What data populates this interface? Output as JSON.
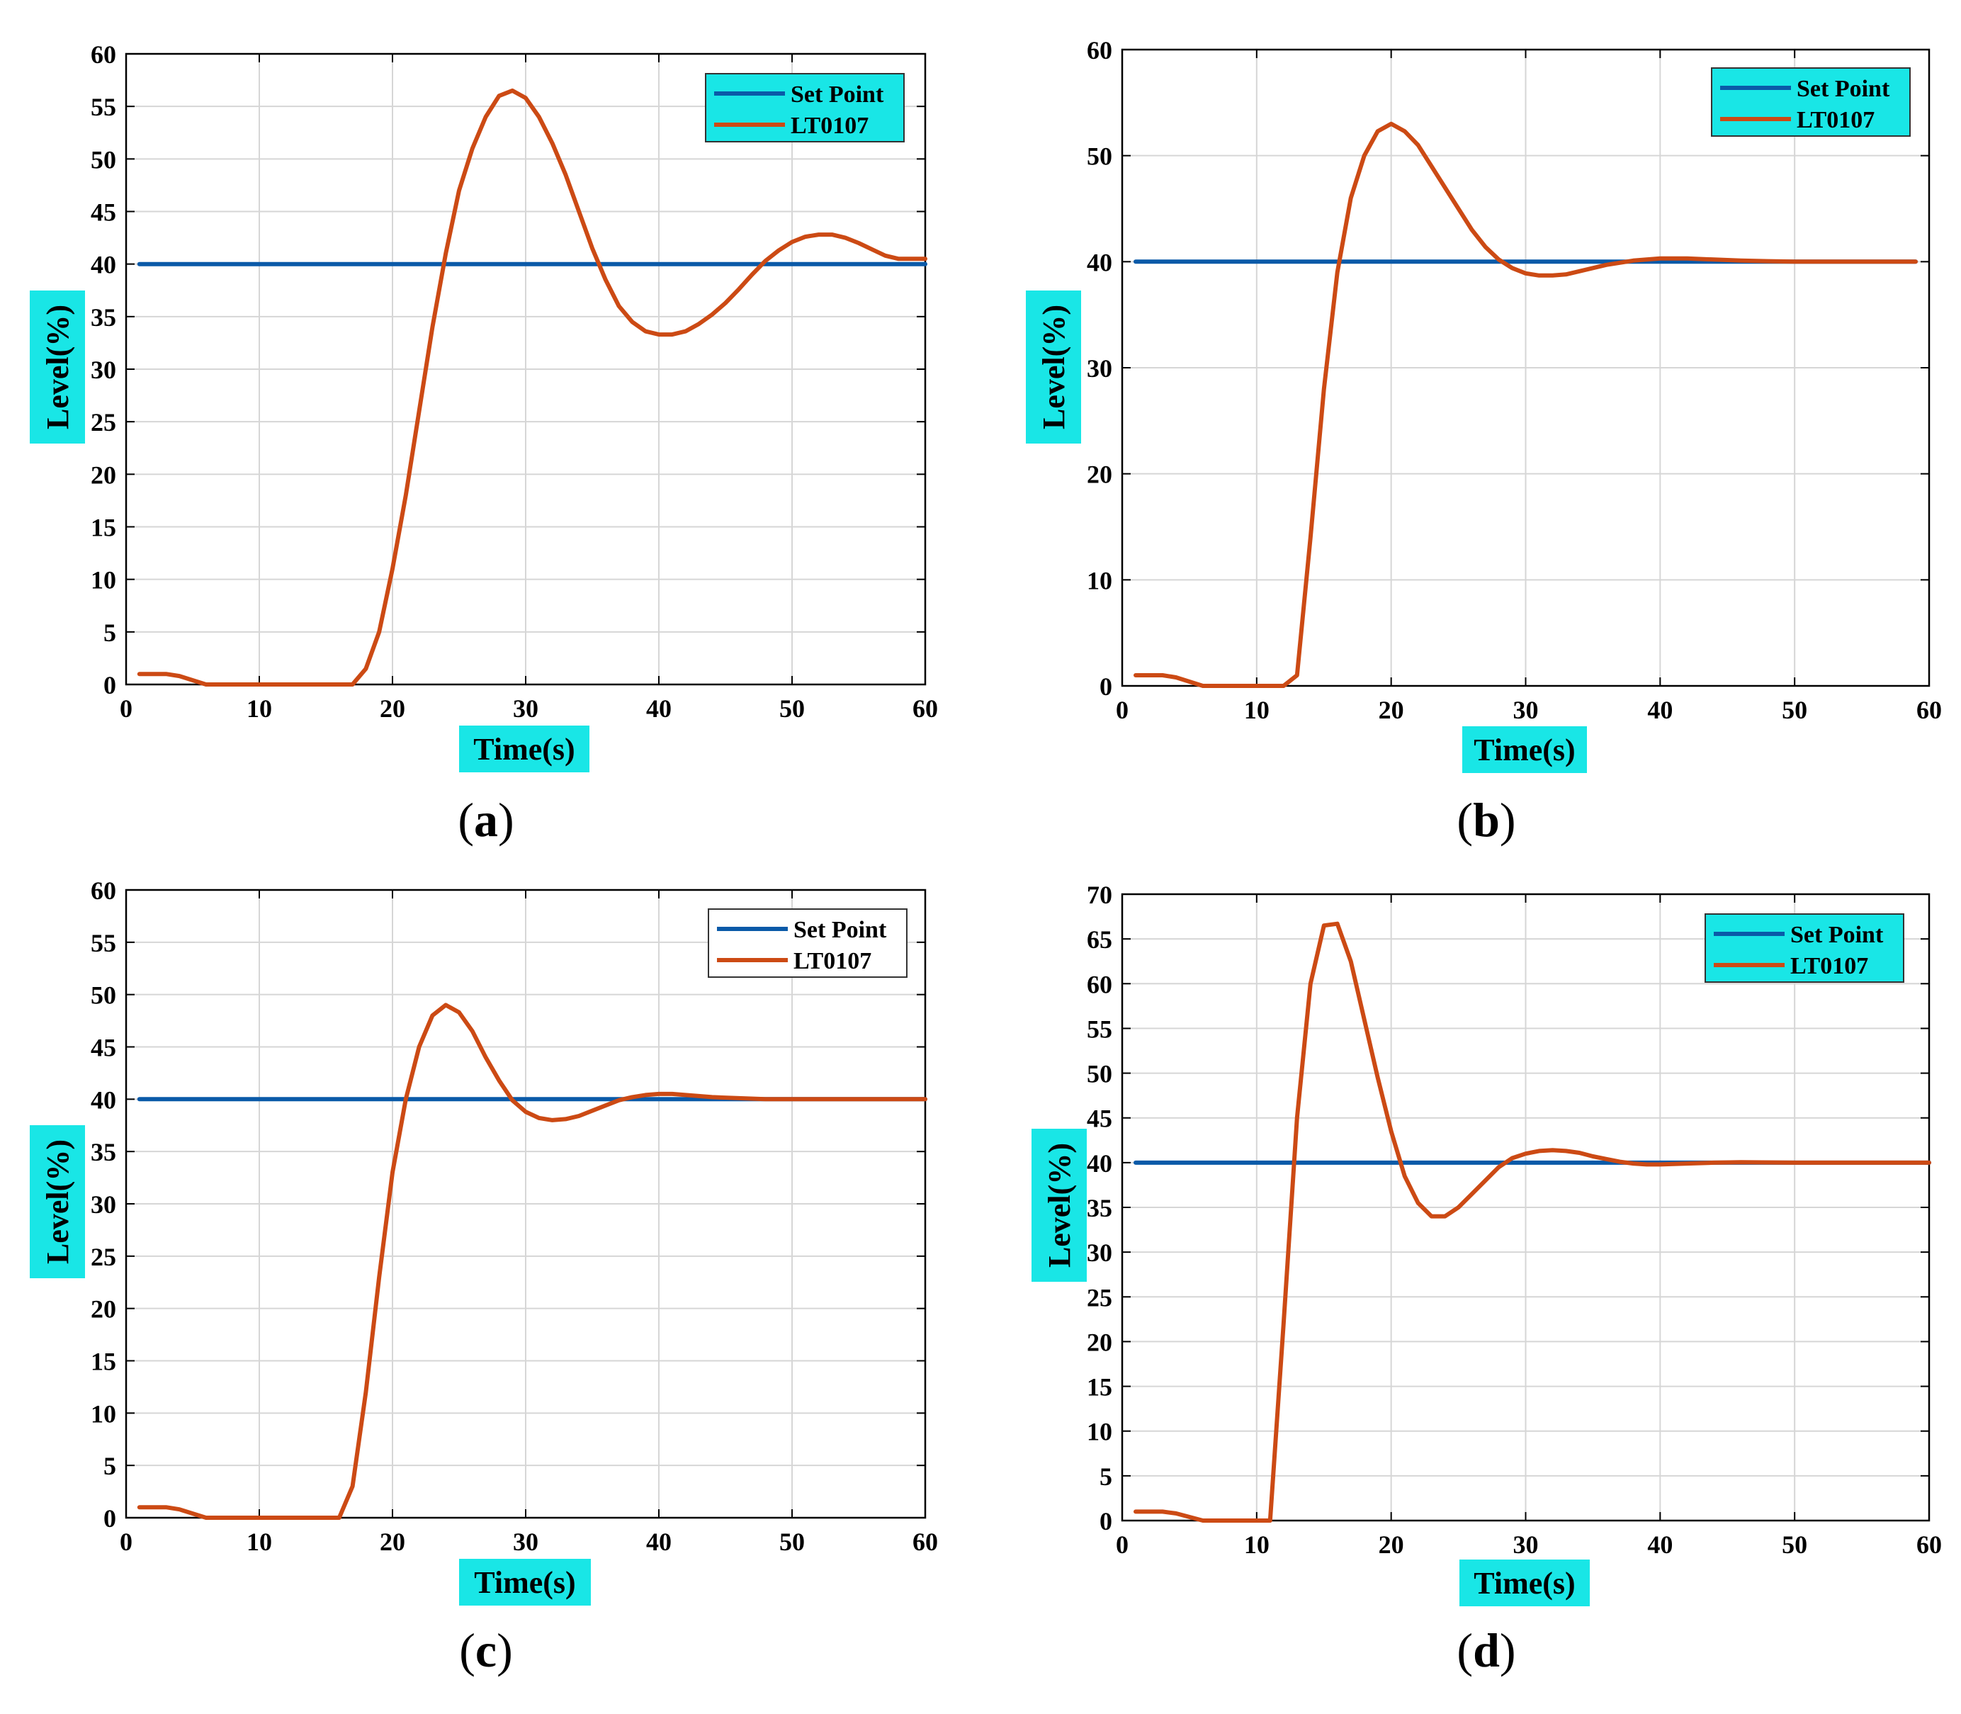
{
  "colors": {
    "setpoint": "#0a5aa8",
    "response": "#cc4a14",
    "label_highlight": "#19e6e6",
    "grid": "#d6d6d6",
    "axis": "#000000"
  },
  "chart_data": [
    {
      "panel": "a",
      "type": "line",
      "caption_letter": "a",
      "xlabel": "Time(s)",
      "ylabel": "Level(%)",
      "xlim": [
        0,
        60
      ],
      "ylim": [
        0,
        60
      ],
      "xticks": [
        0,
        10,
        20,
        30,
        40,
        50,
        60
      ],
      "yticks": [
        0,
        5,
        10,
        15,
        20,
        25,
        30,
        35,
        40,
        45,
        50,
        55,
        60
      ],
      "grid": true,
      "legend_position": "top-right",
      "legend_style": "filled",
      "series": [
        {
          "name": "Set Point",
          "x": [
            1,
            60
          ],
          "y": [
            40,
            40
          ]
        },
        {
          "name": "LT0107",
          "x": [
            1,
            3,
            4,
            6,
            10,
            15,
            17,
            18,
            19,
            20,
            21,
            22,
            23,
            24,
            25,
            26,
            27,
            28,
            29,
            30,
            31,
            32,
            33,
            34,
            35,
            36,
            37,
            38,
            39,
            40,
            41,
            42,
            43,
            44,
            45,
            46,
            47,
            48,
            49,
            50,
            51,
            52,
            53,
            54,
            55,
            56,
            57,
            58,
            59,
            60
          ],
          "y": [
            1,
            1,
            0.8,
            0,
            0,
            0,
            0,
            1.5,
            5,
            11,
            18,
            26,
            34,
            41,
            47,
            51,
            54,
            56,
            56.5,
            55.8,
            54,
            51.5,
            48.5,
            45,
            41.5,
            38.5,
            36,
            34.5,
            33.6,
            33.3,
            33.3,
            33.6,
            34.3,
            35.2,
            36.3,
            37.6,
            39,
            40.3,
            41.3,
            42.1,
            42.6,
            42.8,
            42.8,
            42.5,
            42,
            41.4,
            40.8,
            40.5,
            40.5,
            40.5
          ]
        }
      ]
    },
    {
      "panel": "b",
      "type": "line",
      "caption_letter": "b",
      "xlabel": "Time(s)",
      "ylabel": "Level(%)",
      "xlim": [
        0,
        60
      ],
      "ylim": [
        0,
        60
      ],
      "xticks": [
        0,
        10,
        20,
        30,
        40,
        50,
        60
      ],
      "yticks": [
        0,
        10,
        20,
        30,
        40,
        50,
        60
      ],
      "grid": true,
      "legend_position": "top-right",
      "legend_style": "filled",
      "series": [
        {
          "name": "Set Point",
          "x": [
            1,
            59
          ],
          "y": [
            40,
            40
          ]
        },
        {
          "name": "LT0107",
          "x": [
            1,
            3,
            4,
            6,
            9,
            12,
            13,
            14,
            15,
            16,
            17,
            18,
            19,
            20,
            21,
            22,
            23,
            24,
            25,
            26,
            27,
            28,
            29,
            30,
            31,
            32,
            33,
            34,
            35,
            36,
            37,
            38,
            39,
            40,
            42,
            44,
            46,
            48,
            50,
            55,
            59
          ],
          "y": [
            1,
            1,
            0.8,
            0,
            0,
            0,
            1,
            14,
            28,
            39,
            46,
            50,
            52.3,
            53,
            52.3,
            51,
            49,
            47,
            45,
            43,
            41.4,
            40.2,
            39.4,
            38.9,
            38.7,
            38.7,
            38.8,
            39.1,
            39.4,
            39.7,
            39.9,
            40.1,
            40.2,
            40.3,
            40.3,
            40.2,
            40.1,
            40.05,
            40,
            40,
            40
          ]
        }
      ]
    },
    {
      "panel": "c",
      "type": "line",
      "caption_letter": "c",
      "xlabel": "Time(s)",
      "ylabel": "Level(%)",
      "xlim": [
        0,
        60
      ],
      "ylim": [
        0,
        60
      ],
      "xticks": [
        0,
        10,
        20,
        30,
        40,
        50,
        60
      ],
      "yticks": [
        0,
        5,
        10,
        15,
        20,
        25,
        30,
        35,
        40,
        45,
        50,
        55,
        60
      ],
      "grid": true,
      "legend_position": "top-right",
      "legend_style": "outlined",
      "series": [
        {
          "name": "Set Point",
          "x": [
            1,
            60
          ],
          "y": [
            40,
            40
          ]
        },
        {
          "name": "LT0107",
          "x": [
            1,
            3,
            4,
            6,
            10,
            14,
            16,
            17,
            18,
            19,
            20,
            21,
            22,
            23,
            24,
            25,
            26,
            27,
            28,
            29,
            30,
            31,
            32,
            33,
            34,
            35,
            36,
            37,
            38,
            39,
            40,
            41,
            42,
            43,
            44,
            46,
            48,
            50,
            55,
            60
          ],
          "y": [
            1,
            1,
            0.8,
            0,
            0,
            0,
            0,
            3,
            12,
            23,
            33,
            40,
            45,
            48,
            49,
            48.3,
            46.5,
            44,
            41.8,
            39.9,
            38.8,
            38.2,
            38,
            38.1,
            38.4,
            38.9,
            39.4,
            39.9,
            40.2,
            40.4,
            40.5,
            40.5,
            40.4,
            40.3,
            40.2,
            40.1,
            40,
            40,
            40,
            40
          ]
        }
      ]
    },
    {
      "panel": "d",
      "type": "line",
      "caption_letter": "d",
      "xlabel": "Time(s)",
      "ylabel": "Level(%)",
      "xlim": [
        0,
        60
      ],
      "ylim": [
        0,
        70
      ],
      "xticks": [
        0,
        10,
        20,
        30,
        40,
        50,
        60
      ],
      "yticks": [
        0,
        5,
        10,
        15,
        20,
        25,
        30,
        35,
        40,
        45,
        50,
        55,
        60,
        65,
        70
      ],
      "grid": true,
      "legend_position": "top-right",
      "legend_style": "filled",
      "series": [
        {
          "name": "Set Point",
          "x": [
            1,
            60
          ],
          "y": [
            40,
            40
          ]
        },
        {
          "name": "LT0107",
          "x": [
            1,
            3,
            4,
            6,
            8,
            10,
            11,
            12,
            13,
            14,
            15,
            16,
            17,
            18,
            19,
            20,
            21,
            22,
            23,
            24,
            25,
            26,
            27,
            28,
            29,
            30,
            31,
            32,
            33,
            34,
            35,
            36,
            37,
            38,
            39,
            40,
            42,
            44,
            46,
            50,
            55,
            60
          ],
          "y": [
            1,
            1,
            0.8,
            0,
            0,
            0,
            0,
            22,
            45,
            60,
            66.5,
            66.7,
            62.5,
            56,
            49.5,
            43.5,
            38.5,
            35.5,
            34,
            34,
            35,
            36.5,
            38,
            39.5,
            40.5,
            41,
            41.3,
            41.4,
            41.3,
            41.1,
            40.7,
            40.4,
            40.1,
            39.9,
            39.8,
            39.8,
            39.9,
            40,
            40.05,
            40,
            40,
            40
          ]
        }
      ]
    }
  ]
}
